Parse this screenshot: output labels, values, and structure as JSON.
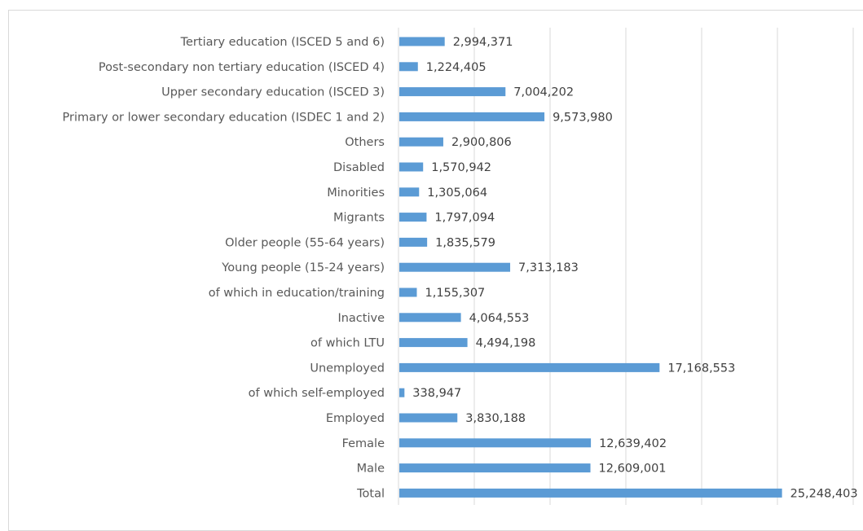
{
  "chart_data": {
    "type": "bar",
    "orientation": "horizontal",
    "categories": [
      "Tertiary education (ISCED 5 and 6)",
      "Post-secondary non tertiary education (ISCED 4)",
      "Upper secondary education (ISCED 3)",
      "Primary or lower secondary education (ISDEC 1 and 2)",
      "Others",
      "Disabled",
      "Minorities",
      "Migrants",
      "Older people (55-64 years)",
      "Young people (15-24 years)",
      "of which in education/training",
      "Inactive",
      "of which LTU",
      "Unemployed",
      "of which self-employed",
      "Employed",
      "Female",
      "Male ",
      "Total"
    ],
    "values": [
      2994371,
      1224405,
      7004202,
      9573980,
      2900806,
      1570942,
      1305064,
      1797094,
      1835579,
      7313183,
      1155307,
      4064553,
      4494198,
      17168553,
      338947,
      3830188,
      12639402,
      12609001,
      25248403
    ],
    "value_labels": [
      "2,994,371",
      "1,224,405",
      "7,004,202",
      "9,573,980",
      "2,900,806",
      "1,570,942",
      "1,305,064",
      "1,797,094",
      "1,835,579",
      "7,313,183",
      "1,155,307",
      "4,064,553",
      "4,494,198",
      "17,168,553",
      "338,947",
      "3,830,188",
      "12,639,402",
      "12,609,001",
      "25,248,403"
    ],
    "xlim": [
      0,
      30000000
    ],
    "x_grid_step": 5000000,
    "grid": true,
    "bar_color": "#5b9bd5",
    "title": "",
    "xlabel": "",
    "ylabel": ""
  }
}
